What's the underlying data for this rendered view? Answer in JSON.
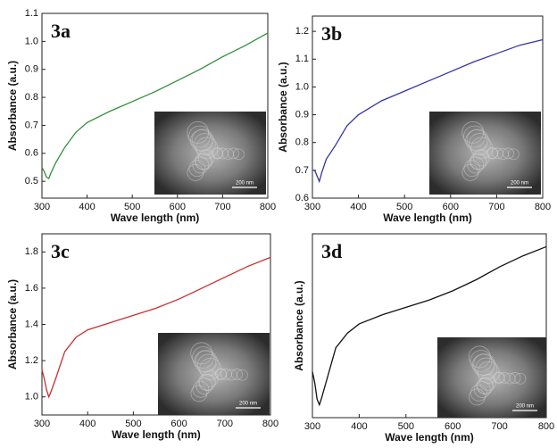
{
  "chart_data": [
    {
      "type": "line",
      "label": "3a",
      "x_label": "Wave length (nm)",
      "y_label": "Absorbance (a.u.)",
      "inset_label": "200 nm",
      "color": "#2f8f3a",
      "x": [
        300,
        305,
        310,
        315,
        320,
        330,
        350,
        375,
        400,
        450,
        500,
        550,
        600,
        650,
        700,
        750,
        800
      ],
      "values": [
        0.55,
        0.535,
        0.515,
        0.51,
        0.53,
        0.565,
        0.62,
        0.675,
        0.71,
        0.75,
        0.785,
        0.82,
        0.86,
        0.9,
        0.945,
        0.985,
        1.03
      ],
      "xlim": [
        300,
        800
      ],
      "xticks": [
        300,
        400,
        500,
        600,
        700,
        800
      ],
      "ylim": [
        0.44,
        1.1
      ],
      "yticks": [
        0.5,
        0.6,
        0.7,
        0.8,
        0.9,
        {
          "value": 1,
          "label": "1.0"
        },
        1.1
      ]
    },
    {
      "type": "line",
      "label": "3b",
      "x_label": "Wave length (nm)",
      "y_label": "Absorbance (a.u.)",
      "inset_label": "200 nm",
      "color": "#3434a6",
      "x": [
        300,
        305,
        310,
        315,
        320,
        330,
        350,
        375,
        400,
        450,
        500,
        550,
        600,
        650,
        700,
        750,
        800
      ],
      "values": [
        0.7,
        0.7,
        0.68,
        0.66,
        0.69,
        0.74,
        0.79,
        0.86,
        0.9,
        0.95,
        0.985,
        1.02,
        1.055,
        1.09,
        1.12,
        1.15,
        1.17
      ],
      "xlim": [
        300,
        800
      ],
      "xticks": [
        300,
        400,
        500,
        600,
        700,
        800
      ],
      "ylim": [
        0.6,
        1.255
      ],
      "yticks": [
        0.6,
        0.7,
        0.8,
        0.9,
        {
          "value": 1,
          "label": "1.0"
        },
        1.1,
        1.2
      ]
    },
    {
      "type": "line",
      "label": "3c",
      "x_label": "Wave length (nm)",
      "y_label": "Absorbance (a.u.)",
      "inset_label": "200 nm",
      "color": "#c8302c",
      "x": [
        300,
        305,
        310,
        315,
        320,
        330,
        350,
        375,
        400,
        450,
        500,
        550,
        600,
        650,
        700,
        750,
        800
      ],
      "values": [
        1.15,
        1.1,
        1.04,
        1.0,
        1.03,
        1.1,
        1.25,
        1.33,
        1.37,
        1.41,
        1.45,
        1.49,
        1.54,
        1.6,
        1.66,
        1.72,
        1.77
      ],
      "xlim": [
        300,
        800
      ],
      "xticks": [
        300,
        400,
        500,
        600,
        700,
        800
      ],
      "ylim": [
        0.9,
        1.9
      ],
      "yticks": [
        {
          "value": 1,
          "label": "1.0"
        },
        1.2,
        1.4,
        1.6,
        1.8
      ]
    },
    {
      "type": "line",
      "label": "3d",
      "x_label": "Wave length (nm)",
      "y_label": "Absorbance (a.u.)",
      "inset_label": "200 nm",
      "color": "#111111",
      "x": [
        300,
        305,
        310,
        315,
        320,
        330,
        350,
        375,
        400,
        450,
        500,
        550,
        600,
        650,
        700,
        750,
        800
      ],
      "values": [
        0.25,
        0.19,
        0.1,
        0.07,
        0.11,
        0.2,
        0.38,
        0.46,
        0.51,
        0.56,
        0.6,
        0.64,
        0.69,
        0.75,
        0.82,
        0.88,
        0.93
      ],
      "xlim": [
        300,
        800
      ],
      "xticks": [
        300,
        400,
        500,
        600,
        700,
        800
      ],
      "ylim": [
        0,
        1
      ],
      "yticks": []
    }
  ]
}
